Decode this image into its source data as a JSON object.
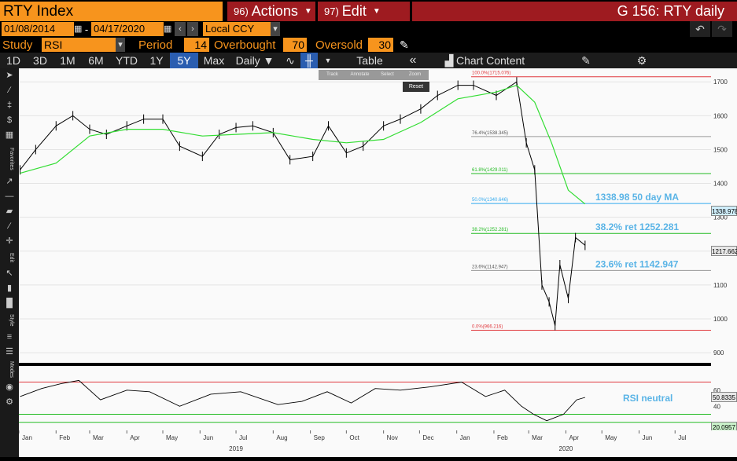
{
  "header": {
    "ticker": "RTY Index",
    "actions_num": "96)",
    "actions_label": "Actions",
    "edit_num": "97)",
    "edit_label": "Edit",
    "title": "G 156: RTY daily"
  },
  "date_bar": {
    "start_date": "01/08/2014",
    "separator": "-",
    "end_date": "04/17/2020",
    "currency": "Local CCY"
  },
  "study_bar": {
    "study_label": "Study",
    "study_value": "RSI",
    "period_label": "Period",
    "period_value": "14",
    "overbought_label": "Overbought",
    "overbought_value": "70",
    "oversold_label": "Oversold",
    "oversold_value": "30"
  },
  "toolbar": {
    "ranges": [
      "1D",
      "3D",
      "1M",
      "6M",
      "YTD",
      "1Y",
      "5Y",
      "Max"
    ],
    "active_range": "5Y",
    "frequency": "Daily ▼",
    "table_label": "Table",
    "chart_content_label": "Chart Content"
  },
  "mini_tools": [
    "Track",
    "Annotate",
    "Select",
    "Zoom"
  ],
  "reset_label": "Reset",
  "left_tool_labels": {
    "favorites": "Favorites",
    "edit": "Edit",
    "style": "Style",
    "modes": "Modes"
  },
  "annotations": {
    "ma_label": "1338.98 50 day MA",
    "ret382_label": "38.2% ret 1252.281",
    "ret236_label": "23.6% ret 1142.947",
    "rsi_label": "RSI neutral"
  },
  "fib_levels": [
    {
      "label": "100.0%(1715.076)",
      "value": 1715.076,
      "color": "#e0393e"
    },
    {
      "label": "76.4%(1538.345)",
      "value": 1538.345,
      "color": "#999999"
    },
    {
      "label": "61.8%(1429.011)",
      "value": 1429.011,
      "color": "#22bb22"
    },
    {
      "label": "50.0%(1340.646)",
      "value": 1340.646,
      "color": "#33aaee"
    },
    {
      "label": "38.2%(1252.281)",
      "value": 1252.281,
      "color": "#22bb22"
    },
    {
      "label": "23.6%(1142.947)",
      "value": 1142.947,
      "color": "#999999"
    },
    {
      "label": "0.0%(966.216)",
      "value": 966.216,
      "color": "#e0393e"
    }
  ],
  "price_tags": {
    "ma": "1338.978",
    "last": "1217.662",
    "rsi_last": "50.8335",
    "rsi_low": "20.0957"
  },
  "colors": {
    "orange": "#f7941d",
    "bloomberg_red": "#9e1b20",
    "ma_line": "#33dd33",
    "price_line": "#000000",
    "annotation_blue": "#5ab4e6"
  },
  "chart_data": {
    "type": "line",
    "ylim": [
      870,
      1740
    ],
    "y_ticks": [
      900,
      1000,
      1100,
      1200,
      1300,
      1400,
      1500,
      1600,
      1700
    ],
    "rsi_ylim": [
      10,
      90
    ],
    "rsi_ticks": [
      40,
      60
    ],
    "rsi_overbought": 70,
    "rsi_oversold": 30,
    "x_ticks": [
      "Jan",
      "Feb",
      "Mar",
      "Apr",
      "May",
      "Jun",
      "Jul",
      "Aug",
      "Sep",
      "Oct",
      "Nov",
      "Dec",
      "Jan",
      "Feb",
      "Mar",
      "Apr",
      "May",
      "Jun",
      "Jul"
    ],
    "year_labels": [
      "2019",
      "2020"
    ],
    "series": [
      {
        "name": "RTY Index",
        "x": [
          "2019-01-02",
          "2019-01-15",
          "2019-02-01",
          "2019-02-15",
          "2019-03-01",
          "2019-03-15",
          "2019-04-01",
          "2019-04-15",
          "2019-05-01",
          "2019-05-15",
          "2019-06-03",
          "2019-06-17",
          "2019-07-01",
          "2019-07-15",
          "2019-08-01",
          "2019-08-15",
          "2019-09-03",
          "2019-09-16",
          "2019-10-01",
          "2019-10-15",
          "2019-11-01",
          "2019-11-15",
          "2019-12-02",
          "2019-12-16",
          "2020-01-02",
          "2020-01-15",
          "2020-02-03",
          "2020-02-20",
          "2020-02-28",
          "2020-03-06",
          "2020-03-12",
          "2020-03-18",
          "2020-03-23",
          "2020-03-27",
          "2020-04-03",
          "2020-04-09",
          "2020-04-17"
        ],
        "y": [
          1440,
          1500,
          1570,
          1600,
          1560,
          1545,
          1570,
          1590,
          1590,
          1510,
          1480,
          1545,
          1565,
          1570,
          1550,
          1470,
          1480,
          1570,
          1490,
          1510,
          1570,
          1590,
          1620,
          1660,
          1690,
          1690,
          1660,
          1700,
          1520,
          1440,
          1100,
          1050,
          980,
          1160,
          1060,
          1240,
          1217
        ]
      },
      {
        "name": "50 day MA",
        "x": [
          "2019-01-02",
          "2019-02-01",
          "2019-03-01",
          "2019-04-01",
          "2019-05-01",
          "2019-06-03",
          "2019-07-01",
          "2019-08-01",
          "2019-09-03",
          "2019-10-01",
          "2019-11-01",
          "2019-12-02",
          "2020-01-02",
          "2020-02-03",
          "2020-02-20",
          "2020-03-06",
          "2020-03-20",
          "2020-04-03",
          "2020-04-17"
        ],
        "y": [
          1430,
          1460,
          1540,
          1560,
          1560,
          1540,
          1545,
          1550,
          1530,
          1520,
          1530,
          1580,
          1650,
          1670,
          1690,
          1640,
          1520,
          1380,
          1339
        ]
      },
      {
        "name": "RSI",
        "x": [
          "2019-01-02",
          "2019-01-20",
          "2019-02-05",
          "2019-02-20",
          "2019-03-10",
          "2019-04-01",
          "2019-04-20",
          "2019-05-15",
          "2019-06-10",
          "2019-07-05",
          "2019-08-05",
          "2019-08-25",
          "2019-09-15",
          "2019-10-05",
          "2019-10-25",
          "2019-11-15",
          "2019-12-10",
          "2020-01-05",
          "2020-01-25",
          "2020-02-10",
          "2020-02-24",
          "2020-03-05",
          "2020-03-16",
          "2020-03-30",
          "2020-04-10",
          "2020-04-17"
        ],
        "y": [
          52,
          62,
          68,
          72,
          48,
          60,
          58,
          40,
          55,
          58,
          42,
          46,
          58,
          44,
          62,
          60,
          64,
          70,
          52,
          60,
          40,
          30,
          22,
          30,
          48,
          51
        ]
      }
    ]
  }
}
